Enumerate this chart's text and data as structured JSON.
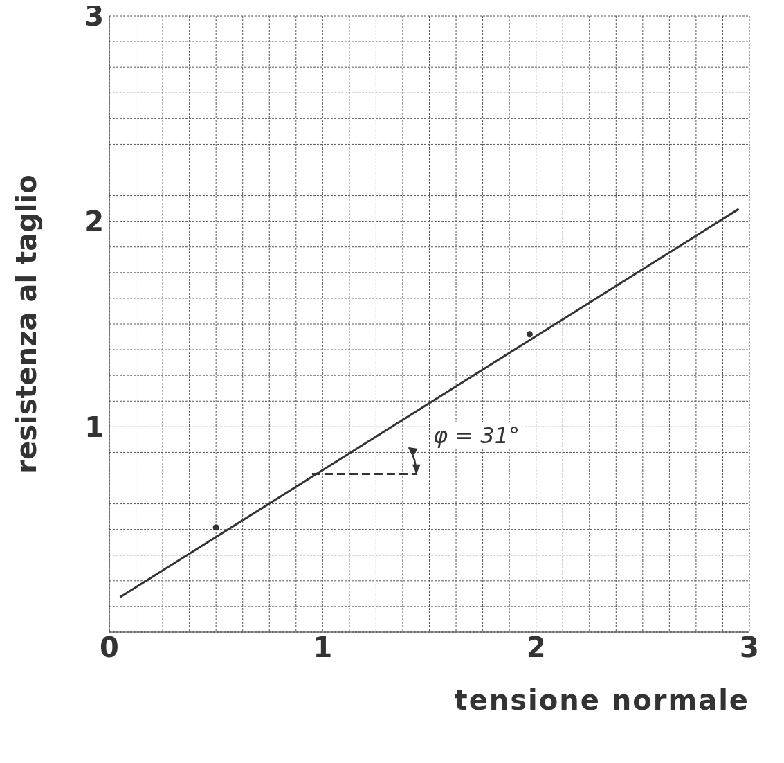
{
  "chart_data": {
    "type": "line",
    "xlabel": "tensione normale",
    "ylabel": "resistenza al taglio",
    "xlim": [
      0,
      3
    ],
    "ylim": [
      0,
      3
    ],
    "xticks": [
      0,
      {
        "value": 0.125,
        "label": null
      },
      {
        "value": 0.25,
        "label": null
      },
      {
        "value": 0.375,
        "label": null
      },
      {
        "value": 0.5,
        "label": null
      },
      {
        "value": 0.625,
        "label": null
      },
      {
        "value": 0.75,
        "label": null
      },
      {
        "value": 0.875,
        "label": null
      },
      1,
      {
        "value": 1.125,
        "label": null
      },
      {
        "value": 1.25,
        "label": null
      },
      {
        "value": 1.375,
        "label": null
      },
      {
        "value": 1.5,
        "label": null
      },
      {
        "value": 1.625,
        "label": null
      },
      {
        "value": 1.75,
        "label": null
      },
      {
        "value": 1.875,
        "label": null
      },
      2,
      {
        "value": 2.125,
        "label": null
      },
      {
        "value": 2.25,
        "label": null
      },
      {
        "value": 2.375,
        "label": null
      },
      {
        "value": 2.5,
        "label": null
      },
      {
        "value": 2.625,
        "label": null
      },
      {
        "value": 2.75,
        "label": null
      },
      {
        "value": 2.875,
        "label": null
      },
      3
    ],
    "yticks": [
      {
        "value": 0,
        "label": null
      },
      {
        "value": 0.125,
        "label": null
      },
      {
        "value": 0.25,
        "label": null
      },
      {
        "value": 0.375,
        "label": null
      },
      {
        "value": 0.5,
        "label": null
      },
      {
        "value": 0.625,
        "label": null
      },
      {
        "value": 0.75,
        "label": null
      },
      {
        "value": 0.875,
        "label": null
      },
      1,
      {
        "value": 1.125,
        "label": null
      },
      {
        "value": 1.25,
        "label": null
      },
      {
        "value": 1.375,
        "label": null
      },
      {
        "value": 1.5,
        "label": null
      },
      {
        "value": 1.625,
        "label": null
      },
      {
        "value": 1.75,
        "label": null
      },
      {
        "value": 1.875,
        "label": null
      },
      2,
      {
        "value": 2.125,
        "label": null
      },
      {
        "value": 2.25,
        "label": null
      },
      {
        "value": 2.375,
        "label": null
      },
      {
        "value": 2.5,
        "label": null
      },
      {
        "value": 2.625,
        "label": null
      },
      {
        "value": 2.75,
        "label": null
      },
      {
        "value": 2.875,
        "label": null
      },
      3
    ],
    "grid": true,
    "series": [
      {
        "color": "#333333",
        "x": [
          0.05,
          2.95
        ],
        "values": [
          0.17,
          2.06
        ],
        "marker": "none",
        "line_style": "solid"
      },
      {
        "type": "scatter",
        "color": "#333333",
        "x": [
          0.5,
          1.97
        ],
        "values": [
          0.51,
          1.45
        ],
        "marker": "circle"
      },
      {
        "type": "line",
        "color": "#333333",
        "x": [
          0.95,
          1.44
        ],
        "values": [
          0.77,
          0.77
        ],
        "marker": "none",
        "line_style": "dashed"
      }
    ],
    "annotations": [
      "φ = 31°"
    ]
  }
}
